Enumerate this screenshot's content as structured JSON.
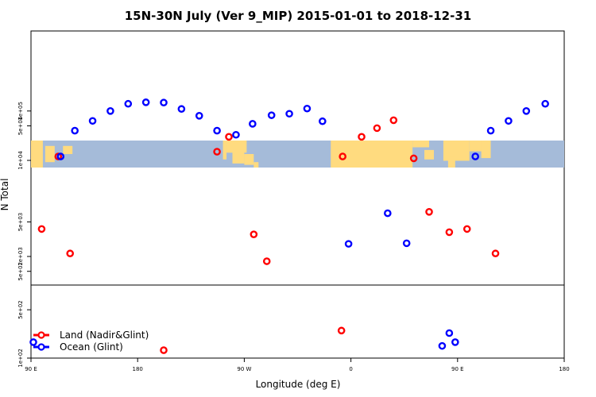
{
  "chart_data": {
    "type": "scatter",
    "title": "15N-30N July (Ver 9_MIP)   2015-01-01 to 2018-12-31",
    "xlabel": "Longitude (deg E)",
    "ylabel": "N Total",
    "x_ticks": [
      {
        "value": -90,
        "label": "90 E"
      },
      {
        "value": 0,
        "label": "180"
      },
      {
        "value": 90,
        "label": "90 W"
      },
      {
        "value": 180,
        "label": "0"
      },
      {
        "value": 270,
        "label": "90 E"
      },
      {
        "value": 360,
        "label": "180"
      }
    ],
    "y_ticks_upper": [
      {
        "value": 10000,
        "label": "1e+04"
      },
      {
        "value": 50000,
        "label": "5e+04"
      },
      {
        "value": 100000,
        "label": "1e+05"
      }
    ],
    "y_ticks_middle": [
      {
        "value": 500,
        "label": "5e+02"
      },
      {
        "value": 1000,
        "label": "1e+03"
      },
      {
        "value": 5000,
        "label": "5e+03"
      }
    ],
    "y_ticks_lower": [
      {
        "value": 100,
        "label": "1e+02"
      },
      {
        "value": 500,
        "label": "5e+02"
      }
    ],
    "xlim": [
      -90,
      360
    ],
    "map_band": {
      "lat_top": 30,
      "lat_bottom": 15
    },
    "colors": {
      "land": "#ff0000",
      "ocean": "#0000ff",
      "map_ocean": "#a5bbd9",
      "map_land": "#ffdb7f"
    },
    "series": [
      {
        "name": "Land (Nadir&Glint)",
        "color": "#ff0000",
        "points": [
          {
            "x": -81,
            "y": 3600
          },
          {
            "x": -67,
            "y": 12000
          },
          {
            "x": -57,
            "y": 1150
          },
          {
            "x": 22,
            "y": 130
          },
          {
            "x": 67,
            "y": 15000
          },
          {
            "x": 77,
            "y": 30000
          },
          {
            "x": 98,
            "y": 2800
          },
          {
            "x": 109,
            "y": 800
          },
          {
            "x": 172,
            "y": 250
          },
          {
            "x": 173,
            "y": 12000
          },
          {
            "x": 189,
            "y": 30000
          },
          {
            "x": 202,
            "y": 45000
          },
          {
            "x": 216,
            "y": 65000
          },
          {
            "x": 233,
            "y": 11000
          },
          {
            "x": 246,
            "y": 8000
          },
          {
            "x": 263,
            "y": 3100
          },
          {
            "x": 278,
            "y": 3600
          },
          {
            "x": 302,
            "y": 1150
          }
        ]
      },
      {
        "name": "Ocean (Glint)",
        "color": "#0000ff",
        "points": [
          {
            "x": -88,
            "y": 170
          },
          {
            "x": -65,
            "y": 12000
          },
          {
            "x": -53,
            "y": 40000
          },
          {
            "x": -38,
            "y": 63000
          },
          {
            "x": -23,
            "y": 100000
          },
          {
            "x": -8,
            "y": 140000
          },
          {
            "x": 7,
            "y": 150000
          },
          {
            "x": 22,
            "y": 148000
          },
          {
            "x": 37,
            "y": 110000
          },
          {
            "x": 52,
            "y": 80000
          },
          {
            "x": 67,
            "y": 40000
          },
          {
            "x": 83,
            "y": 33000
          },
          {
            "x": 97,
            "y": 55000
          },
          {
            "x": 113,
            "y": 82000
          },
          {
            "x": 128,
            "y": 88000
          },
          {
            "x": 143,
            "y": 112000
          },
          {
            "x": 156,
            "y": 62000
          },
          {
            "x": 178,
            "y": 1800
          },
          {
            "x": 211,
            "y": 7500
          },
          {
            "x": 227,
            "y": 1850
          },
          {
            "x": 257,
            "y": 150
          },
          {
            "x": 263,
            "y": 230
          },
          {
            "x": 268,
            "y": 170
          },
          {
            "x": 285,
            "y": 12000
          },
          {
            "x": 298,
            "y": 40000
          },
          {
            "x": 313,
            "y": 63000
          },
          {
            "x": 328,
            "y": 100000
          },
          {
            "x": 344,
            "y": 140000
          }
        ]
      }
    ],
    "legend": {
      "placement": "bottom-left"
    }
  }
}
